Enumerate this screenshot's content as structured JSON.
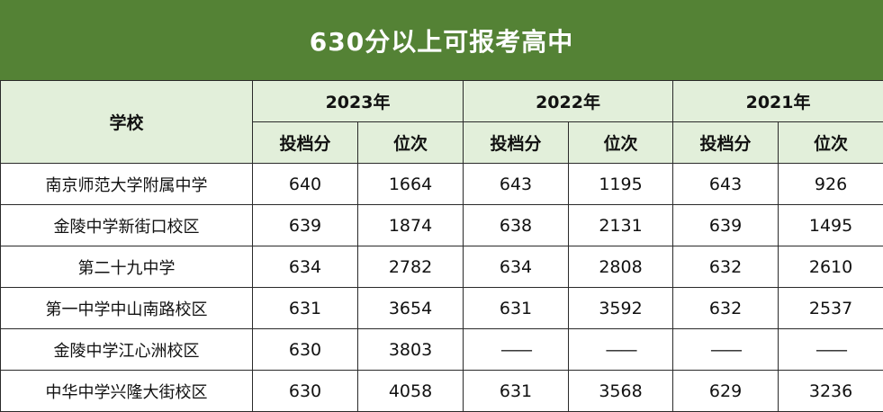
{
  "title": "630分以上可报考高中",
  "header": {
    "school_label": "学校",
    "years": [
      "2023年",
      "2022年",
      "2021年"
    ],
    "score_label": "投档分",
    "rank_label": "位次"
  },
  "rows": [
    {
      "school": "南京师范大学附属中学",
      "cells": [
        "640",
        "1664",
        "643",
        "1195",
        "643",
        "926"
      ]
    },
    {
      "school": "金陵中学新街口校区",
      "cells": [
        "639",
        "1874",
        "638",
        "2131",
        "639",
        "1495"
      ]
    },
    {
      "school": "第二十九中学",
      "cells": [
        "634",
        "2782",
        "634",
        "2808",
        "632",
        "2610"
      ]
    },
    {
      "school": "第一中学中山南路校区",
      "cells": [
        "631",
        "3654",
        "631",
        "3592",
        "632",
        "2537"
      ]
    },
    {
      "school": "金陵中学江心洲校区",
      "cells": [
        "630",
        "3803",
        "——",
        "——",
        "——",
        "——"
      ]
    },
    {
      "school": "中华中学兴隆大街校区",
      "cells": [
        "630",
        "4058",
        "631",
        "3568",
        "629",
        "3236"
      ]
    }
  ],
  "colors": {
    "title_bg": "#548235",
    "title_text": "#ffffff",
    "header_bg": "#e2efda",
    "border": "#2a2a2a"
  }
}
